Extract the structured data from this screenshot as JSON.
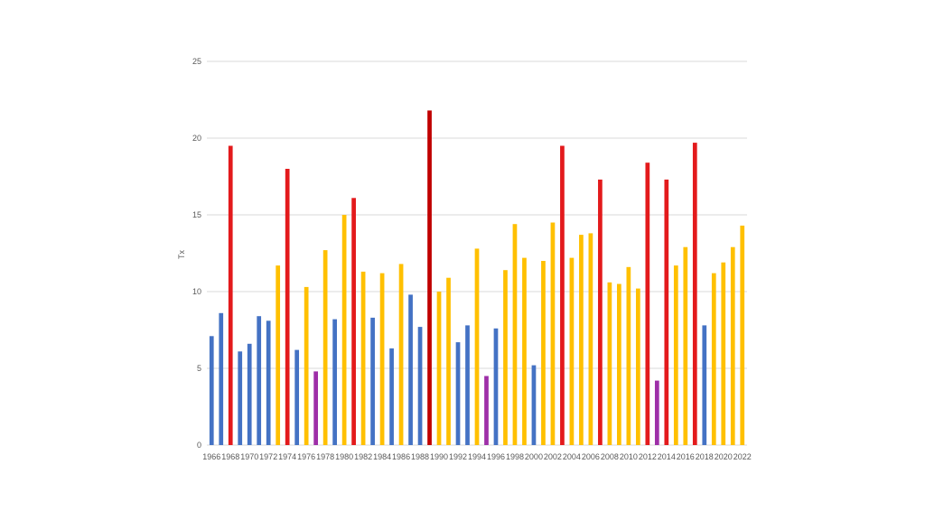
{
  "chart_data": {
    "type": "bar",
    "title": "",
    "xlabel": "",
    "ylabel": "Tx",
    "ylim": [
      0,
      25
    ],
    "yticks": [
      0,
      5,
      10,
      15,
      20,
      25
    ],
    "grid": true,
    "legend": "none",
    "palette": {
      "blue": "#4472c4",
      "red": "#e31a1c",
      "darkred": "#c00000",
      "yellow": "#ffc000",
      "purple": "#9e2fa8"
    },
    "categories": [
      "1966",
      "1967",
      "1968",
      "1969",
      "1970",
      "1971",
      "1972",
      "1973",
      "1974",
      "1975",
      "1976",
      "1977",
      "1978",
      "1979",
      "1980",
      "1981",
      "1982",
      "1983",
      "1984",
      "1985",
      "1986",
      "1987",
      "1988",
      "1989",
      "1990",
      "1991",
      "1992",
      "1993",
      "1994",
      "1995",
      "1996",
      "1997",
      "1998",
      "1999",
      "2000",
      "2001",
      "2002",
      "2003",
      "2004",
      "2005",
      "2006",
      "2007",
      "2008",
      "2009",
      "2010",
      "2011",
      "2012",
      "2013",
      "2014",
      "2015",
      "2016",
      "2017",
      "2018",
      "2019",
      "2020",
      "2021",
      "2022"
    ],
    "tick_labels": [
      "1966",
      "1968",
      "1970",
      "1972",
      "1974",
      "1976",
      "1978",
      "1980",
      "1982",
      "1984",
      "1986",
      "1988",
      "1990",
      "1992",
      "1994",
      "1996",
      "1998",
      "2000",
      "2002",
      "2004",
      "2006",
      "2008",
      "2010",
      "2012",
      "2014",
      "2016",
      "2018",
      "2020",
      "2022"
    ],
    "values": [
      7.1,
      8.6,
      19.5,
      6.1,
      6.6,
      8.4,
      8.1,
      11.7,
      18.0,
      6.2,
      10.3,
      4.8,
      12.7,
      8.2,
      15.0,
      16.1,
      11.3,
      8.3,
      11.2,
      6.3,
      11.8,
      9.8,
      7.7,
      21.8,
      10.0,
      10.9,
      6.7,
      7.8,
      12.8,
      4.5,
      7.6,
      11.4,
      14.4,
      12.2,
      5.2,
      12.0,
      14.5,
      19.5,
      12.2,
      13.7,
      13.8,
      17.3,
      10.6,
      10.5,
      11.6,
      10.2,
      18.4,
      4.2,
      17.3,
      11.7,
      12.9,
      19.7,
      7.8,
      11.2,
      11.9,
      12.9,
      14.3
    ],
    "colors": [
      "blue",
      "blue",
      "red",
      "blue",
      "blue",
      "blue",
      "blue",
      "yellow",
      "red",
      "blue",
      "yellow",
      "purple",
      "yellow",
      "blue",
      "yellow",
      "red",
      "yellow",
      "blue",
      "yellow",
      "blue",
      "yellow",
      "blue",
      "blue",
      "darkred",
      "yellow",
      "yellow",
      "blue",
      "blue",
      "yellow",
      "purple",
      "blue",
      "yellow",
      "yellow",
      "yellow",
      "blue",
      "yellow",
      "yellow",
      "red",
      "yellow",
      "yellow",
      "yellow",
      "red",
      "yellow",
      "yellow",
      "yellow",
      "yellow",
      "red",
      "purple",
      "red",
      "yellow",
      "yellow",
      "red",
      "blue",
      "yellow",
      "yellow",
      "yellow",
      "yellow"
    ]
  }
}
